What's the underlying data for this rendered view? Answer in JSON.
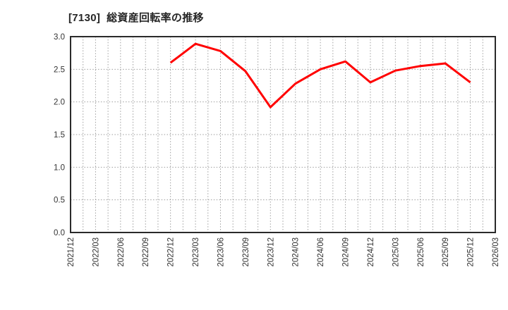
{
  "title": "[7130]  総資産回転率の推移",
  "chart_data": {
    "type": "line",
    "title": "[7130] 総資産回転率の推移",
    "xlabel": "",
    "ylabel": "",
    "ylim": [
      0.0,
      3.0
    ],
    "ytick_step": 0.5,
    "grid": "dotted",
    "legend": "none",
    "categories": [
      "2021/12",
      "2022/03",
      "2022/06",
      "2022/09",
      "2022/12",
      "2023/03",
      "2023/06",
      "2023/09",
      "2023/12",
      "2024/03",
      "2024/06",
      "2024/09",
      "2024/12",
      "2025/03",
      "2025/06",
      "2025/09",
      "2025/12",
      "2026/03"
    ],
    "series": [
      {
        "name": "総資産回転率",
        "color": "#ff0000",
        "values": [
          null,
          null,
          null,
          null,
          2.6,
          2.89,
          2.78,
          2.47,
          1.92,
          2.28,
          2.5,
          2.62,
          2.3,
          2.48,
          2.55,
          2.59,
          2.3,
          null
        ]
      }
    ],
    "colors": {
      "line": "#ff0000",
      "frame": "#2a2a2a",
      "grid": "#9e9e9e",
      "tick_text": "#333333",
      "title_text": "#262626",
      "background": "#ffffff"
    }
  }
}
